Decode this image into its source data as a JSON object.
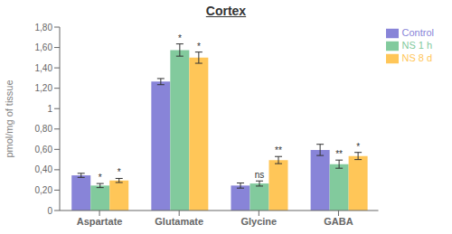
{
  "chart_data": {
    "type": "bar",
    "title": "Cortex",
    "ylabel": "pmol/mg of tissue",
    "categories": [
      "Aspartate",
      "Glutamate",
      "Glycine",
      "GABA"
    ],
    "series": [
      {
        "name": "Control",
        "values": [
          0.345,
          1.265,
          0.245,
          0.595
        ],
        "errors": [
          0.02,
          0.03,
          0.025,
          0.055
        ]
      },
      {
        "name": "NS 1 h",
        "values": [
          0.245,
          1.575,
          0.265,
          0.455
        ],
        "errors": [
          0.02,
          0.06,
          0.025,
          0.04
        ],
        "annotations": [
          "*",
          "*",
          "ns",
          "**"
        ]
      },
      {
        "name": "NS 8 d",
        "values": [
          0.295,
          1.5,
          0.495,
          0.535
        ],
        "errors": [
          0.02,
          0.055,
          0.035,
          0.035
        ],
        "annotations": [
          "*",
          "*",
          "**",
          "*"
        ]
      }
    ],
    "ylim": [
      0,
      1.8
    ],
    "yticks": [
      0,
      {
        "value": 0.2,
        "label": "0,20"
      },
      {
        "value": 0.4,
        "label": "0,40"
      },
      {
        "value": 0.6,
        "label": "0,60"
      },
      {
        "value": 0.8,
        "label": "0,80"
      },
      1,
      {
        "value": 1.2,
        "label": "1,20"
      },
      {
        "value": 1.4,
        "label": "1,40"
      },
      {
        "value": 1.6,
        "label": "1,60"
      },
      {
        "value": 1.8,
        "label": "1,80"
      }
    ],
    "grid": false,
    "legend": "upper right"
  }
}
